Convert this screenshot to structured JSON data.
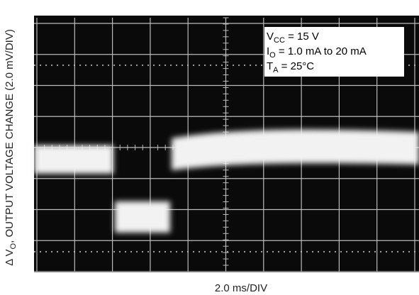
{
  "chart_data": {
    "type": "scope",
    "y_label": {
      "prefix": "Δ V",
      "sub": "O",
      "rest": ", OUTPUT VOLTAGE CHANGE (2.0 mV/DIV)"
    },
    "x_label": "2.0 ms/DIV",
    "annotations": [
      {
        "main": "V",
        "sub": "CC",
        "rest": " = 15 V"
      },
      {
        "main": "I",
        "sub": "O",
        "rest": " = 1.0 mA to 20 mA"
      },
      {
        "main": "T",
        "sub": "A",
        "rest": " = 25°C"
      }
    ]
  }
}
